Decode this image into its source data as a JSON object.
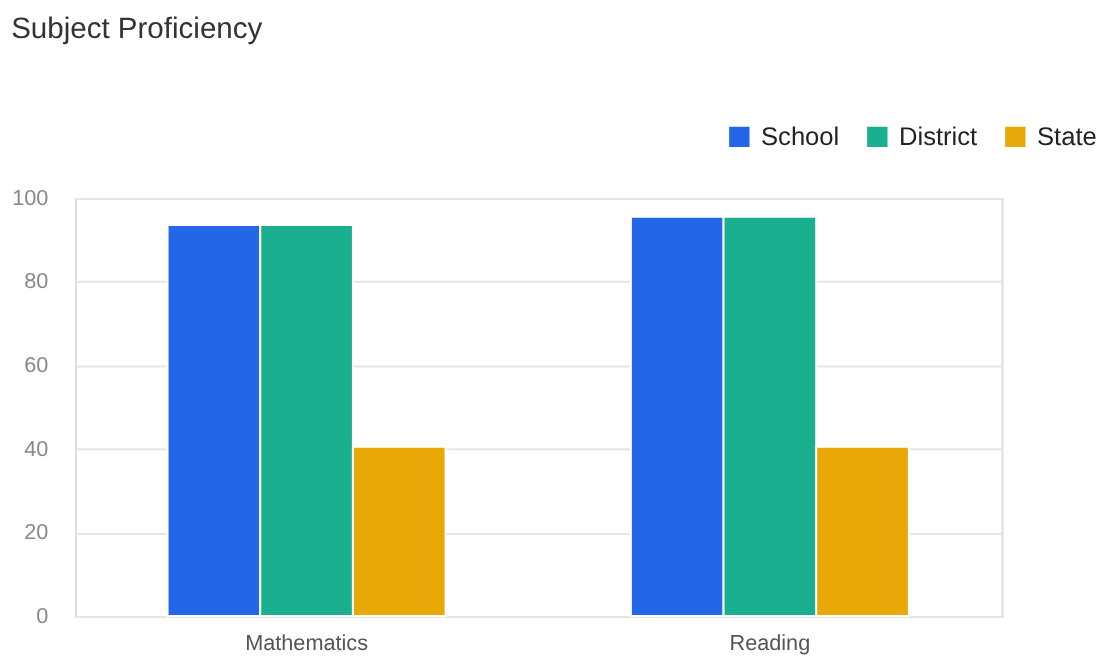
{
  "chart_data": {
    "type": "bar",
    "title": "Subject Proficiency",
    "categories": [
      "Mathematics",
      "Reading"
    ],
    "series": [
      {
        "name": "School",
        "color": "#2366e8",
        "values": [
          93.5,
          95.5
        ]
      },
      {
        "name": "District",
        "color": "#1aaf8e",
        "values": [
          93.5,
          95.5
        ]
      },
      {
        "name": "State",
        "color": "#e8a808",
        "values": [
          40.5,
          40.5
        ]
      }
    ],
    "ylim": [
      0,
      100
    ],
    "yticks": [
      0,
      20,
      40,
      60,
      80,
      100
    ],
    "grid": "y",
    "legend": "top right"
  }
}
